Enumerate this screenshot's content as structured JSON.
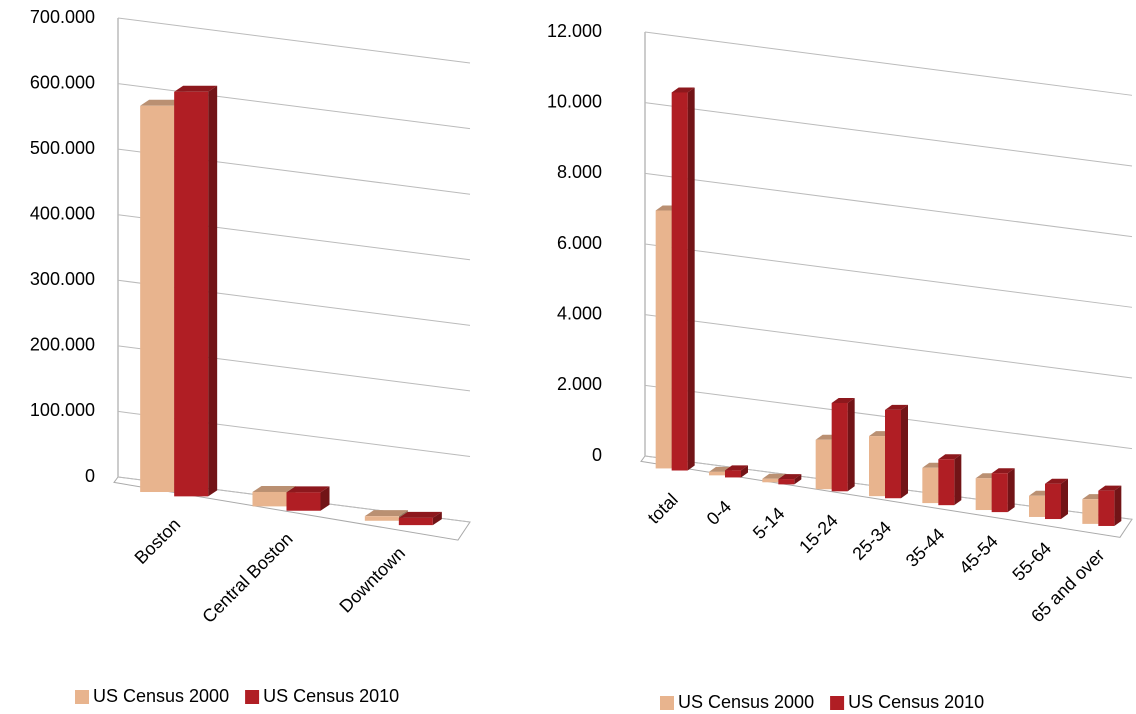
{
  "chart_data": [
    {
      "type": "bar3d",
      "categories": [
        "Boston",
        "Central Boston",
        "Downtown"
      ],
      "series": [
        {
          "name": "US Census 2000",
          "color": "#e8b48e",
          "values": [
            589000,
            22000,
            7000
          ]
        },
        {
          "name": "US Census 2010",
          "color": "#b01e24",
          "values": [
            617000,
            28000,
            11000
          ]
        }
      ],
      "ylim": [
        0,
        700000
      ],
      "yticks": [
        0,
        {
          "value": 100000,
          "label": "100.000"
        },
        {
          "value": 200000,
          "label": "200.000"
        },
        {
          "value": 300000,
          "label": "300.000"
        },
        {
          "value": 400000,
          "label": "400.000"
        },
        {
          "value": 500000,
          "label": "500.000"
        },
        {
          "value": 600000,
          "label": "600.000"
        },
        {
          "value": 700000,
          "label": "700.000"
        }
      ],
      "grid": true,
      "legend": "bottom"
    },
    {
      "type": "bar3d",
      "categories": [
        "total",
        "0-4",
        "5-14",
        "15-24",
        "25-34",
        "35-44",
        "45-54",
        "55-64",
        "65 and over"
      ],
      "series": [
        {
          "name": "US Census 2000",
          "color": "#e8b48e",
          "values": [
            7300,
            100,
            100,
            1400,
            1700,
            1000,
            900,
            600,
            700
          ]
        },
        {
          "name": "US Census 2010",
          "color": "#b01e24",
          "values": [
            10700,
            200,
            150,
            2500,
            2500,
            1300,
            1100,
            1000,
            1000
          ]
        }
      ],
      "ylim": [
        0,
        12000
      ],
      "yticks": [
        0,
        {
          "value": 2000,
          "label": "2.000"
        },
        {
          "value": 4000,
          "label": "4.000"
        },
        {
          "value": 6000,
          "label": "6.000"
        },
        {
          "value": 8000,
          "label": "8.000"
        },
        {
          "value": 10000,
          "label": "10.000"
        },
        {
          "value": 12000,
          "label": "12.000"
        }
      ],
      "grid": true,
      "legend": "bottom"
    }
  ]
}
